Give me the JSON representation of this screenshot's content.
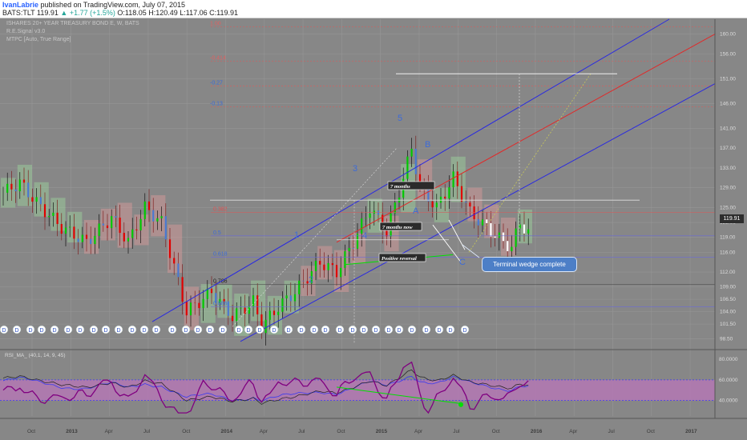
{
  "header": {
    "author": "IvanLabrie",
    "published_text": "published on TradingView.com, July 07, 2015",
    "symbol": "BATS:TLT",
    "last": "119.91",
    "change": "▲ +1.77 (+1.5%)",
    "ohlc": "O:118.05 H:120.49 L:117.06 C:119.91"
  },
  "overlays": {
    "title": "ISHARES 20+ YEAR TREASURY BOND E, W, BATS",
    "indicator1": "R.E.Signal v3.0",
    "indicator2": "MTPC [Auto, True Range]"
  },
  "price_tag": "119.91",
  "callout": "Terminal wedge complete",
  "colors": {
    "background": "#878787",
    "up_bar": "#00c800",
    "down_bar": "#e00000",
    "channel": "#2a2ae0",
    "median": "#e02a2a",
    "rsi_band": "#b478b4",
    "rsi_line": "#800080"
  },
  "chart_data": [
    {
      "type": "candlestick",
      "title": "ISHARES 20+ YEAR TREASURY BOND E, W, BATS",
      "x_tick_labels": [
        "Oct",
        "2013",
        "Apr",
        "Jul",
        "Oct",
        "2014",
        "Apr",
        "Jul",
        "Oct",
        "2015",
        "Apr",
        "Jul",
        "Oct",
        "2016",
        "Apr",
        "Jul",
        "Oct",
        "2017"
      ],
      "y_tick_labels": [
        "98.50",
        "101.50",
        "104.00",
        "106.50",
        "109.00",
        "112.00",
        "116.00",
        "119.00",
        "122.00",
        "125.00",
        "129.00",
        "133.00",
        "137.00",
        "141.00",
        "146.00",
        "151.00",
        "156.00",
        "160.00"
      ],
      "ylim": [
        97,
        163
      ],
      "grid": true,
      "fib_levels": [
        {
          "label": "1.00",
          "value": 161.5
        },
        {
          "label": "-0.414",
          "value": 154.5
        },
        {
          "label": "-0.27",
          "value": 149.5
        },
        {
          "label": "-0.13",
          "value": 145.3
        },
        {
          "label": "0.382",
          "value": 124.0
        },
        {
          "label": "0.5",
          "value": 119.3
        },
        {
          "label": "0.618",
          "value": 115.0
        },
        {
          "label": "0.786",
          "value": 109.5
        },
        {
          "label": "0.886",
          "value": 105.0
        }
      ],
      "wave_labels": [
        "1",
        "2",
        "3",
        "4",
        "5",
        "A",
        "B",
        "C"
      ],
      "annotations": [
        "7 months",
        "7 months now",
        "Positive reversal"
      ],
      "signal_marker": "D",
      "last_price": 119.91
    },
    {
      "type": "line",
      "title": "RSI_MA_ (40,1, 14, 9, 45)",
      "y_tick_labels": [
        "80.0000",
        "60.0000",
        "40.0000"
      ],
      "ylim": [
        25,
        87
      ],
      "band": [
        40,
        60
      ]
    }
  ]
}
